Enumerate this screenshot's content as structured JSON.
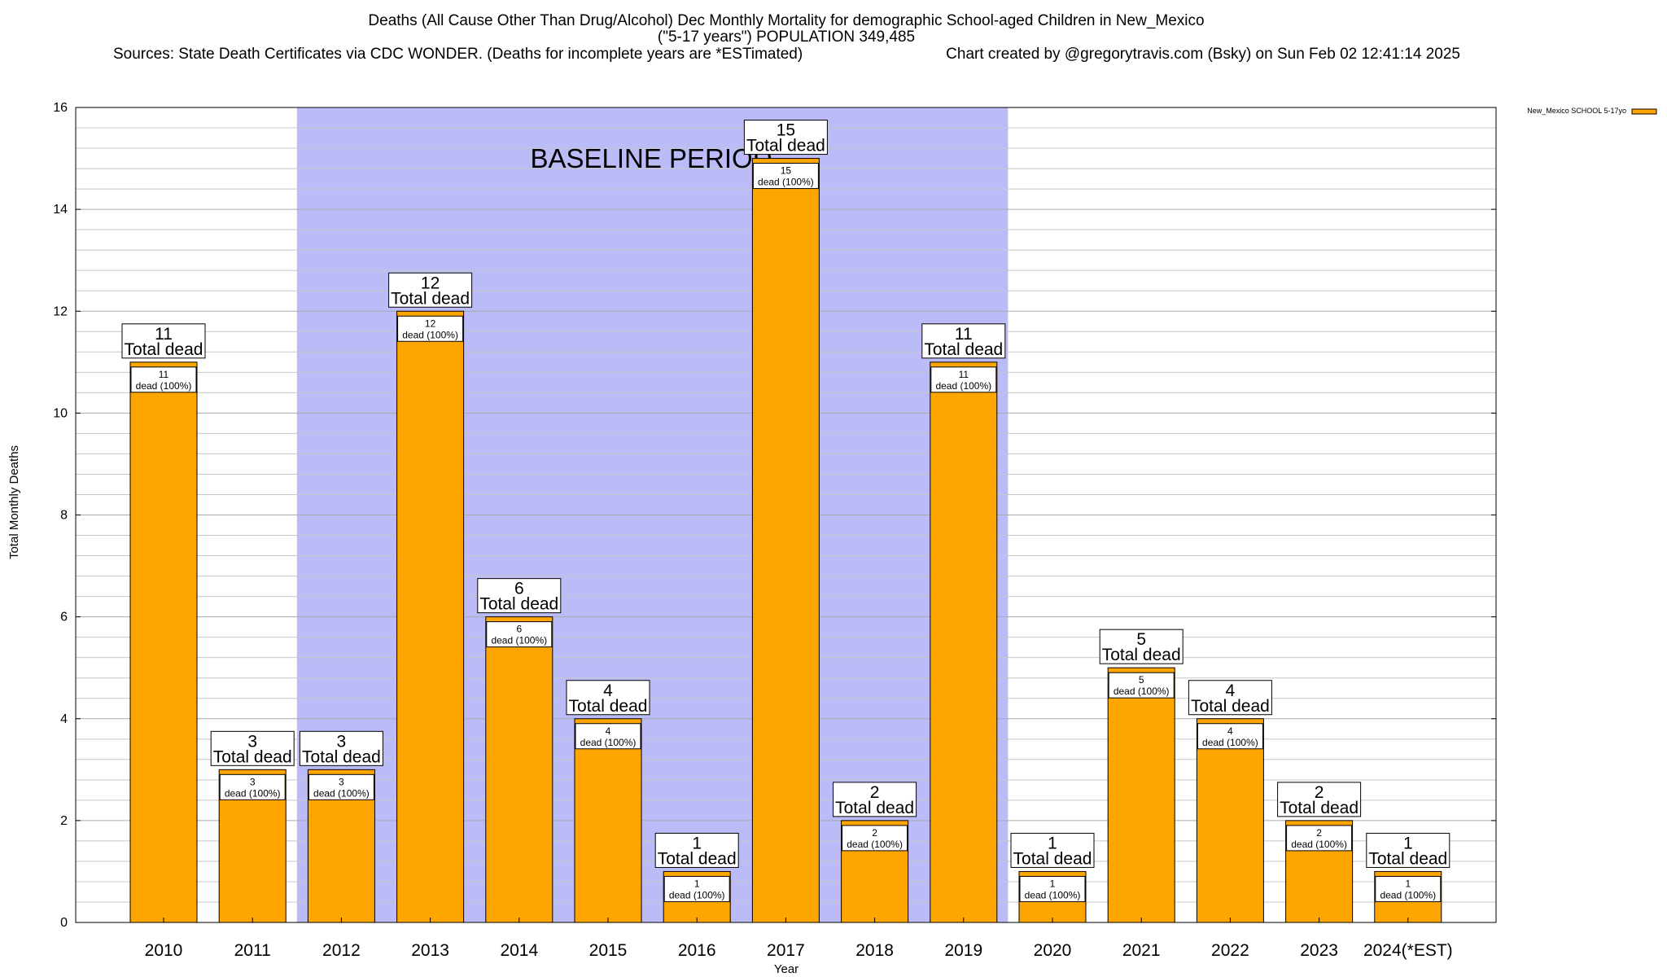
{
  "chart_data": {
    "type": "bar",
    "title": "Deaths (All Cause Other Than Drug/Alcohol) Dec Monthly Mortality for demographic School-aged Children in New_Mexico",
    "subtitle": "(\"5-17 years\") POPULATION 349,485",
    "sources": "Sources: State Death Certificates via CDC WONDER. (Deaths for incomplete years are *ESTimated)",
    "credit": "Chart created by @gregorytravis.com (Bsky) on Sun Feb 02 12:41:14 2025",
    "xlabel": "Year",
    "ylabel": "Total Monthly Deaths",
    "ylim": [
      0,
      16
    ],
    "yticks": [
      "0",
      "2",
      "4",
      "6",
      "8",
      "10",
      "12",
      "14",
      "16"
    ],
    "categories": [
      "2010",
      "2011",
      "2012",
      "2013",
      "2014",
      "2015",
      "2016",
      "2017",
      "2018",
      "2019",
      "2020",
      "2021",
      "2022",
      "2023",
      "2024(*EST)"
    ],
    "series": [
      {
        "name": "New_Mexico SCHOOL 5-17yo",
        "color": "#ffa500",
        "values": [
          11,
          3,
          3,
          12,
          6,
          4,
          1,
          15,
          2,
          11,
          1,
          5,
          4,
          2,
          1
        ]
      }
    ],
    "total_labels": [
      "11",
      "3",
      "3",
      "12",
      "6",
      "4",
      "1",
      "15",
      "2",
      "11",
      "1",
      "5",
      "4",
      "2",
      "1"
    ],
    "total_suffix": "Total dead",
    "segment_labels": [
      "11",
      "3",
      "3",
      "12",
      "6",
      "4",
      "1",
      "15",
      "2",
      "11",
      "1",
      "5",
      "4",
      "2",
      "1"
    ],
    "segment_suffix": "dead (100%)",
    "baseline_period": {
      "label": "BASELINE PERIOD",
      "start": "2012",
      "end": "2019",
      "color": "#bbbbf8"
    },
    "legend": {
      "position": "top-right",
      "label": "New_Mexico SCHOOL 5-17yo"
    },
    "grid": true
  }
}
